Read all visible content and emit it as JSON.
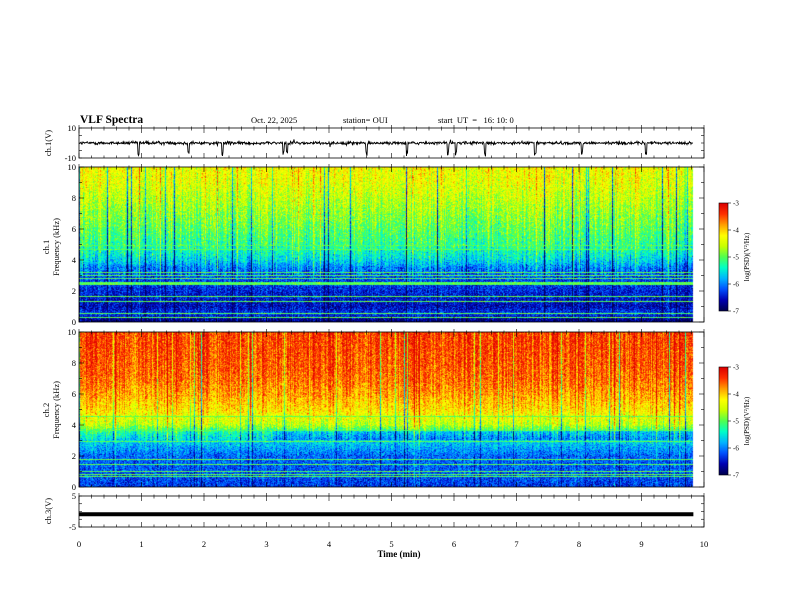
{
  "header": {
    "title": "VLF Spectra",
    "date": "Oct. 22, 2025",
    "station": "station= OUI",
    "start": "start  UT  =   16: 10: 0"
  },
  "colors": {
    "colormap": [
      "#000050",
      "#0000b4",
      "#0050ff",
      "#00b4ff",
      "#00ffc8",
      "#50ff50",
      "#c8ff00",
      "#ffff00",
      "#ffa000",
      "#ff3000",
      "#dc0000"
    ]
  },
  "chart_data": [
    {
      "type": "line",
      "ylabel": "ch.1(V)",
      "ylim": [
        -10,
        10
      ],
      "yticks": [
        "10",
        "-10"
      ],
      "xlim": [
        0,
        10
      ],
      "baseline": 0,
      "note_values": "noisy trace around 0 V with occasional short dips"
    },
    {
      "type": "heatmap",
      "ylabel": "ch.1\nFrequency (kHz)",
      "ylabel_lines": [
        "ch.1",
        "Frequency (kHz)"
      ],
      "ylim": [
        0,
        10
      ],
      "yticks": [
        "0",
        "2",
        "4",
        "6",
        "8",
        "10"
      ],
      "xlim": [
        0,
        10
      ],
      "data_end_min": 9.83,
      "colorbar": {
        "label": "log(PSD)(V²/Hz)",
        "range": [
          -7,
          -3
        ],
        "ticks": [
          "-3",
          "-4",
          "-5",
          "-6",
          "-7"
        ]
      },
      "profile": [
        {
          "f": 0.0,
          "v": -6.9
        },
        {
          "f": 0.5,
          "v": -6.3
        },
        {
          "f": 1.0,
          "v": -6.6
        },
        {
          "f": 1.5,
          "v": -6.5
        },
        {
          "f": 2.0,
          "v": -6.4
        },
        {
          "f": 2.5,
          "v": -6.3
        },
        {
          "f": 3.0,
          "v": -6.2
        },
        {
          "f": 3.5,
          "v": -6.0
        },
        {
          "f": 4.0,
          "v": -5.6
        },
        {
          "f": 5.0,
          "v": -5.2
        },
        {
          "f": 6.0,
          "v": -5.0
        },
        {
          "f": 7.0,
          "v": -4.8
        },
        {
          "f": 8.0,
          "v": -4.6
        },
        {
          "f": 9.0,
          "v": -4.4
        },
        {
          "f": 10.0,
          "v": -4.3
        }
      ]
    },
    {
      "type": "heatmap",
      "ylabel": "ch.2\nFrequency (kHz)",
      "ylabel_lines": [
        "ch.2",
        "Frequency (kHz)"
      ],
      "ylim": [
        0,
        10
      ],
      "yticks": [
        "0",
        "2",
        "4",
        "6",
        "8",
        "10"
      ],
      "xlim": [
        0,
        10
      ],
      "data_end_min": 9.83,
      "colorbar": {
        "label": "log(PSD)(V²/Hz)",
        "range": [
          -7,
          -3
        ],
        "ticks": [
          "-3",
          "-4",
          "-5",
          "-6",
          "-7"
        ]
      },
      "profile": [
        {
          "f": 0.0,
          "v": -6.3
        },
        {
          "f": 1.0,
          "v": -6.2
        },
        {
          "f": 2.0,
          "v": -6.1
        },
        {
          "f": 3.0,
          "v": -5.6
        },
        {
          "f": 3.5,
          "v": -5.3
        },
        {
          "f": 4.0,
          "v": -4.6
        },
        {
          "f": 5.0,
          "v": -4.1
        },
        {
          "f": 6.0,
          "v": -3.8
        },
        {
          "f": 7.0,
          "v": -3.6
        },
        {
          "f": 8.0,
          "v": -3.5
        },
        {
          "f": 10.0,
          "v": -3.4
        }
      ]
    },
    {
      "type": "line",
      "ylabel": "ch.3(V)",
      "ylim": [
        -5,
        5
      ],
      "yticks": [
        "5",
        "-5"
      ],
      "xlim": [
        0,
        10
      ],
      "values_v": -0.9,
      "xlabel": "Time (min)",
      "xticks": [
        "0",
        "1",
        "2",
        "3",
        "4",
        "5",
        "6",
        "7",
        "8",
        "9",
        "10"
      ]
    }
  ]
}
